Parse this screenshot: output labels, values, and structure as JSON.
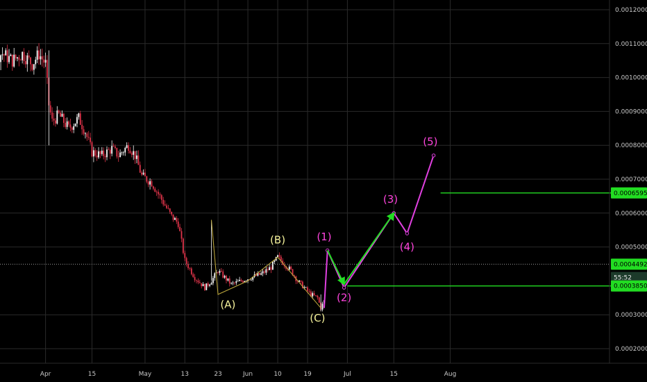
{
  "chart_data": {
    "type": "candlestick",
    "colors": {
      "background": "#000000",
      "grid": "#2a2a2a",
      "up": "#ffffff",
      "down": "#e0344a",
      "correction_abc": "#b8a33a",
      "impulse": "#e040e0",
      "projection_arrow": "#22dd22",
      "support": "#22dd22"
    },
    "y_ticks": [
      "0.0012000",
      "0.0011000",
      "0.0010000",
      "0.0009000",
      "0.0008000",
      "0.0007000",
      "0.0006000",
      "0.0005000",
      "0.0003000",
      "0.0002000"
    ],
    "y_tick_values": [
      0.0012,
      0.0011,
      0.001,
      0.0009,
      0.0008,
      0.0007,
      0.0006,
      0.0005,
      0.0003,
      0.0002
    ],
    "ylim": [
      0.00015,
      0.00124
    ],
    "x_ticks": [
      "Apr",
      "15",
      "May",
      "13",
      "23",
      "Jun",
      "10",
      "19",
      "Jul",
      "15",
      "Aug"
    ],
    "x_tick_days": [
      0,
      14,
      30,
      42,
      52,
      61,
      70,
      79,
      91,
      105,
      122
    ],
    "xlim": [
      -29,
      150
    ],
    "price_path": [
      [
        -29,
        0.00098
      ],
      [
        -25,
        0.00099
      ],
      [
        -22,
        0.00103
      ],
      [
        -19,
        0.00101
      ],
      [
        -16,
        0.00106
      ],
      [
        -13,
        0.00107
      ],
      [
        -10,
        0.00105
      ],
      [
        -7,
        0.00107
      ],
      [
        -4,
        0.00104
      ],
      [
        -2,
        0.00107
      ],
      [
        0,
        0.00104
      ],
      [
        1,
        0.00092
      ],
      [
        2,
        0.00087
      ],
      [
        4,
        0.00089
      ],
      [
        7,
        0.00085
      ],
      [
        10,
        0.00088
      ],
      [
        12,
        0.00084
      ],
      [
        14,
        0.00078
      ],
      [
        17,
        0.00077
      ],
      [
        20,
        0.00079
      ],
      [
        22,
        0.00077
      ],
      [
        25,
        0.0008
      ],
      [
        27,
        0.00077
      ],
      [
        29,
        0.00071
      ],
      [
        32,
        0.00069
      ],
      [
        35,
        0.00064
      ],
      [
        38,
        0.00059
      ],
      [
        40,
        0.00057
      ],
      [
        42,
        0.00046
      ],
      [
        45,
        0.00041
      ],
      [
        48,
        0.00038
      ],
      [
        50,
        0.0004
      ],
      [
        52,
        0.00043
      ],
      [
        54,
        0.00041
      ],
      [
        56,
        0.00039
      ],
      [
        59,
        0.0004
      ],
      [
        62,
        0.00041
      ],
      [
        65,
        0.00042
      ],
      [
        68,
        0.00044
      ],
      [
        70,
        0.00047
      ],
      [
        72,
        0.00045
      ],
      [
        74,
        0.00043
      ],
      [
        76,
        0.0004
      ],
      [
        78,
        0.00038
      ],
      [
        80,
        0.00036
      ],
      [
        82,
        0.00035
      ],
      [
        83,
        0.00032
      ],
      [
        84,
        0.00034
      ]
    ],
    "correction_path": [
      [
        50,
        0.00058
      ],
      [
        52,
        0.00036
      ],
      [
        61,
        0.0004
      ],
      [
        70,
        0.00047
      ],
      [
        83,
        0.00032
      ]
    ],
    "impulse_path": [
      [
        84,
        0.00032
      ],
      [
        85,
        0.00049
      ],
      [
        90,
        0.00038
      ],
      [
        105,
        0.0006
      ],
      [
        109,
        0.00054
      ],
      [
        117,
        0.00077
      ]
    ],
    "projection_arrows": [
      [
        [
          85,
          0.00049
        ],
        [
          90,
          0.00039
        ]
      ],
      [
        [
          90,
          0.00039
        ],
        [
          105,
          0.0006
        ]
      ]
    ],
    "wave_labels": [
      {
        "text": "(A)",
        "x": 55,
        "y": 0.00032,
        "color": "yellow"
      },
      {
        "text": "(B)",
        "x": 70,
        "y": 0.00051,
        "color": "yellow"
      },
      {
        "text": "(C)",
        "x": 82,
        "y": 0.00028,
        "color": "yellow"
      },
      {
        "text": "(1)",
        "x": 84,
        "y": 0.00052,
        "color": "pink"
      },
      {
        "text": "(2)",
        "x": 90,
        "y": 0.00034,
        "color": "pink"
      },
      {
        "text": "(3)",
        "x": 104,
        "y": 0.00063,
        "color": "pink"
      },
      {
        "text": "(4)",
        "x": 109,
        "y": 0.00049,
        "color": "pink"
      },
      {
        "text": "(5)",
        "x": 116,
        "y": 0.0008,
        "color": "pink"
      }
    ],
    "current_price_line": 0.0004492,
    "support_line": {
      "value": 0.000385,
      "x_start": 91
    },
    "target_line": {
      "value": 0.0006595,
      "x_start": 117
    },
    "price_tags": [
      {
        "text": "0.0006595",
        "value": 0.0006595,
        "style": "green"
      },
      {
        "text": "0.0004492",
        "value": 0.0004492,
        "style": "green"
      },
      {
        "text": "55:52",
        "value": 0.00041,
        "style": "dark"
      },
      {
        "text": "0.0003850",
        "value": 0.000385,
        "style": "green"
      }
    ],
    "partial_tick": {
      "text": "0.0",
      "value": 0.0004
    }
  }
}
